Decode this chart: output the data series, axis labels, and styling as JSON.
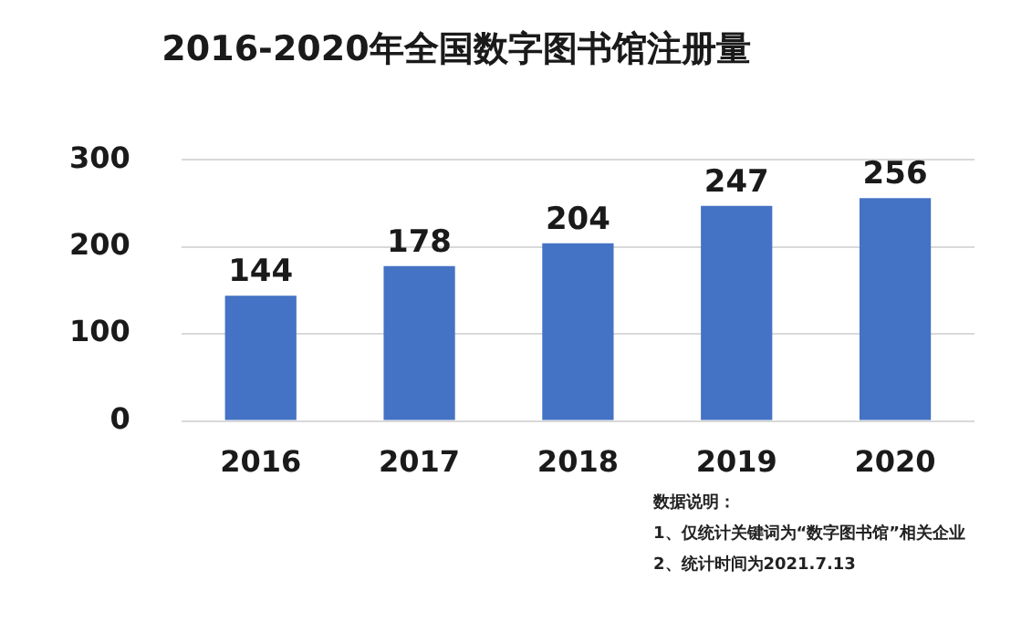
{
  "chart_data": {
    "type": "bar",
    "title": "2016-2020年全国数字图书馆注册量",
    "categories": [
      "2016",
      "2017",
      "2018",
      "2019",
      "2020"
    ],
    "values": [
      144,
      178,
      204,
      247,
      256
    ],
    "color": "#4472c4",
    "ylim": [
      0,
      300
    ],
    "yticks": [
      0,
      100,
      200,
      300
    ],
    "grid": "y",
    "data_labels": true,
    "legend": false,
    "annotations": [
      "数据说明：",
      "1、仅统计关键词为“数字图书馆”相关企业",
      "2、统计时间为2021.7.13"
    ]
  }
}
